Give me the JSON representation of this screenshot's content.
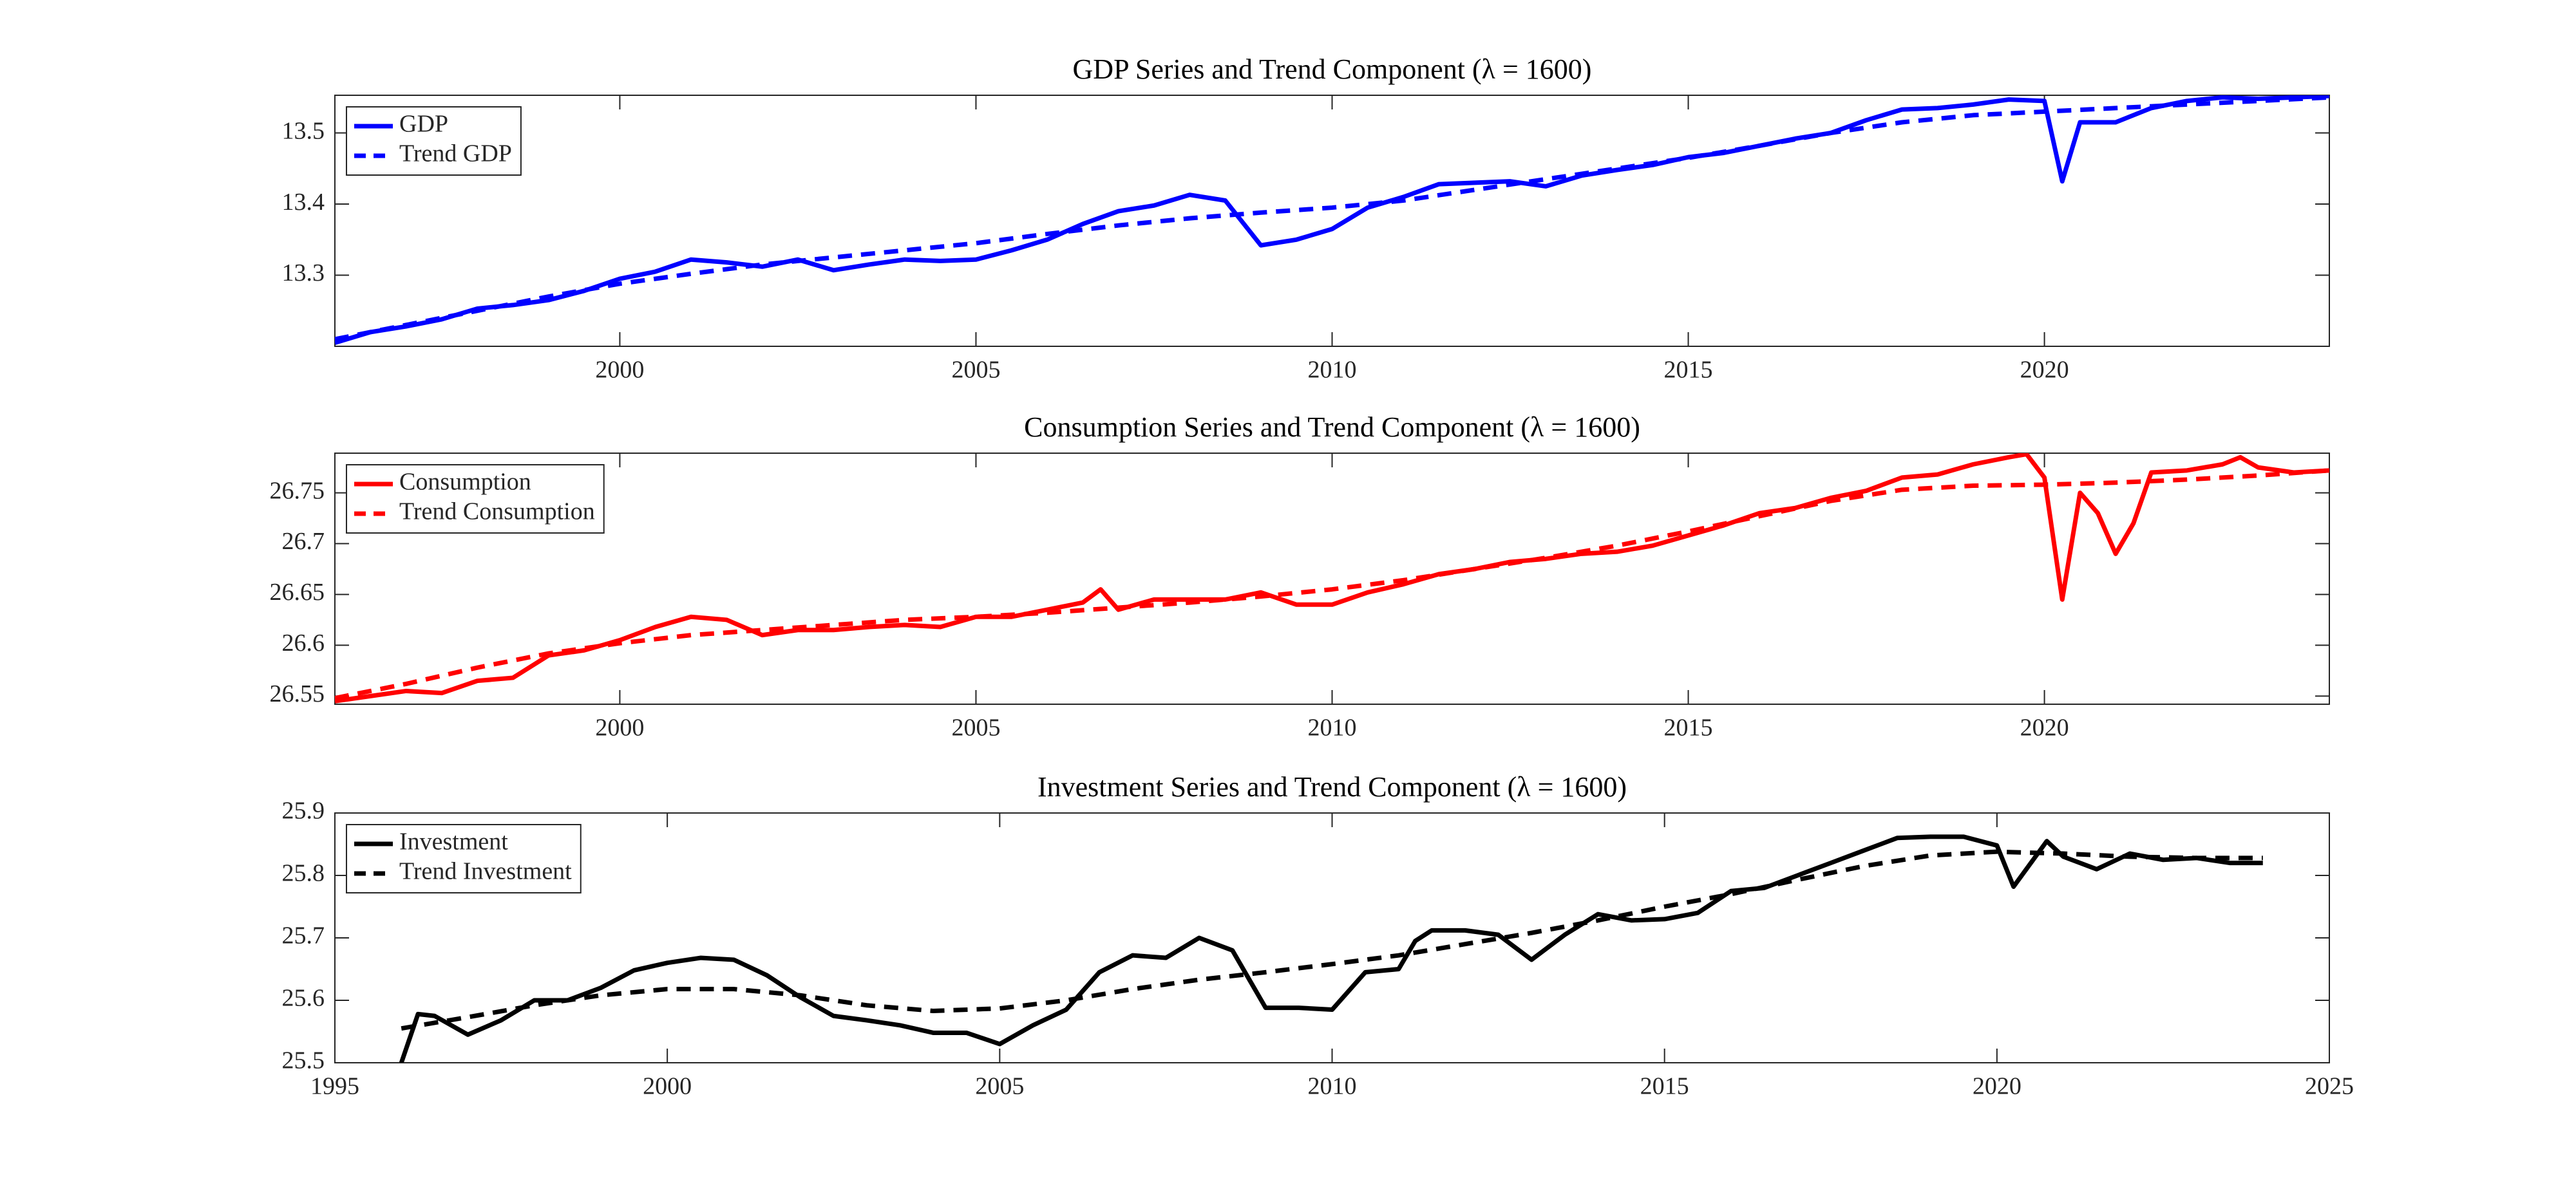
{
  "chart_data": [
    {
      "type": "line",
      "title": "GDP Series and Trend Component (λ = 1600)",
      "legend": "upper left",
      "xlim": [
        1996,
        2024
      ],
      "xticks": [
        2000,
        2005,
        2010,
        2015,
        2020
      ],
      "ylim": [
        13.2,
        13.553
      ],
      "yticks": [
        13.3,
        13.4,
        13.5
      ],
      "series": [
        {
          "name": "GDP",
          "color": "#0000ff",
          "style": "solid",
          "x": [
            1996,
            1996.5,
            1997,
            1997.5,
            1998,
            1998.5,
            1999,
            1999.5,
            2000,
            2000.5,
            2001,
            2001.5,
            2002,
            2002.5,
            2003,
            2003.5,
            2004,
            2004.5,
            2005,
            2005.5,
            2006,
            2006.5,
            2007,
            2007.5,
            2008,
            2008.5,
            2009,
            2009.5,
            2010,
            2010.5,
            2011,
            2011.5,
            2012,
            2012.5,
            2013,
            2013.5,
            2014,
            2014.5,
            2015,
            2015.5,
            2016,
            2016.5,
            2017,
            2017.5,
            2018,
            2018.5,
            2019,
            2019.5,
            2020,
            2020.25,
            2020.5,
            2021,
            2021.5,
            2022,
            2022.5,
            2023,
            2023.5,
            2024
          ],
          "values": [
            13.205,
            13.22,
            13.228,
            13.238,
            13.253,
            13.258,
            13.265,
            13.278,
            13.295,
            13.305,
            13.322,
            13.318,
            13.312,
            13.322,
            13.307,
            13.315,
            13.322,
            13.32,
            13.322,
            13.335,
            13.35,
            13.372,
            13.39,
            13.398,
            13.413,
            13.405,
            13.342,
            13.35,
            13.365,
            13.395,
            13.41,
            13.428,
            13.43,
            13.432,
            13.425,
            13.44,
            13.448,
            13.455,
            13.466,
            13.472,
            13.482,
            13.492,
            13.5,
            13.518,
            13.533,
            13.535,
            13.54,
            13.547,
            13.545,
            13.432,
            13.515,
            13.515,
            13.535,
            13.545,
            13.55,
            13.548,
            13.55,
            13.552
          ]
        },
        {
          "name": "Trend GDP",
          "color": "#0000ff",
          "style": "dashed",
          "x": [
            1996,
            1997,
            1998,
            1999,
            2000,
            2001,
            2002,
            2003,
            2004,
            2005,
            2006,
            2007,
            2008,
            2009,
            2010,
            2011,
            2012,
            2013,
            2014,
            2015,
            2016,
            2017,
            2018,
            2019,
            2020,
            2021,
            2022,
            2023,
            2024
          ],
          "values": [
            13.21,
            13.23,
            13.25,
            13.27,
            13.288,
            13.302,
            13.315,
            13.325,
            13.335,
            13.345,
            13.358,
            13.37,
            13.38,
            13.388,
            13.395,
            13.405,
            13.42,
            13.435,
            13.45,
            13.465,
            13.482,
            13.5,
            13.515,
            13.525,
            13.53,
            13.535,
            13.54,
            13.545,
            13.55
          ]
        }
      ]
    },
    {
      "type": "line",
      "title": "Consumption Series and Trend Component (λ = 1600)",
      "legend": "upper left",
      "xlim": [
        1996,
        2024
      ],
      "xticks": [
        2000,
        2005,
        2010,
        2015,
        2020
      ],
      "ylim": [
        26.542,
        26.789
      ],
      "yticks": [
        26.55,
        26.6,
        26.65,
        26.7,
        26.75
      ],
      "series": [
        {
          "name": "Consumption",
          "color": "#ff0000",
          "style": "solid",
          "x": [
            1996,
            1996.5,
            1997,
            1997.5,
            1998,
            1998.5,
            1999,
            1999.5,
            2000,
            2000.5,
            2001,
            2001.5,
            2002,
            2002.5,
            2003,
            2003.5,
            2004,
            2004.5,
            2005,
            2005.5,
            2006,
            2006.5,
            2006.75,
            2007,
            2007.5,
            2008,
            2008.5,
            2009,
            2009.5,
            2010,
            2010.5,
            2011,
            2011.5,
            2012,
            2012.5,
            2013,
            2013.5,
            2014,
            2014.5,
            2015,
            2015.5,
            2016,
            2016.5,
            2017,
            2017.5,
            2018,
            2018.5,
            2019,
            2019.5,
            2019.75,
            2020,
            2020.25,
            2020.5,
            2020.75,
            2021,
            2021.25,
            2021.5,
            2022,
            2022.5,
            2022.75,
            2023,
            2023.5,
            2024
          ],
          "values": [
            26.545,
            26.55,
            26.555,
            26.553,
            26.565,
            26.568,
            26.59,
            26.595,
            26.605,
            26.618,
            26.628,
            26.625,
            26.61,
            26.615,
            26.615,
            26.618,
            26.62,
            26.618,
            26.628,
            26.628,
            26.635,
            26.642,
            26.655,
            26.635,
            26.645,
            26.645,
            26.645,
            26.652,
            26.64,
            26.64,
            26.652,
            26.66,
            26.67,
            26.675,
            26.682,
            26.685,
            26.69,
            26.692,
            26.698,
            26.708,
            26.718,
            26.73,
            26.735,
            26.745,
            26.752,
            26.765,
            26.768,
            26.778,
            26.785,
            26.788,
            26.765,
            26.645,
            26.75,
            26.73,
            26.69,
            26.72,
            26.77,
            26.772,
            26.778,
            26.785,
            26.775,
            26.77,
            26.772
          ]
        },
        {
          "name": "Trend Consumption",
          "color": "#ff0000",
          "style": "dashed",
          "x": [
            1996,
            1997,
            1998,
            1999,
            2000,
            2001,
            2002,
            2003,
            2004,
            2005,
            2006,
            2007,
            2008,
            2009,
            2010,
            2011,
            2012,
            2013,
            2014,
            2015,
            2016,
            2017,
            2018,
            2019,
            2020,
            2021,
            2022,
            2023,
            2024
          ],
          "values": [
            26.548,
            26.562,
            26.578,
            26.592,
            26.602,
            26.61,
            26.615,
            26.62,
            26.625,
            26.628,
            26.632,
            26.637,
            26.642,
            26.648,
            26.655,
            26.664,
            26.675,
            26.686,
            26.698,
            26.712,
            26.727,
            26.742,
            26.753,
            26.757,
            26.758,
            26.76,
            26.763,
            26.767,
            26.772
          ]
        }
      ]
    },
    {
      "type": "line",
      "title": "Investment Series and Trend Component (λ = 1600)",
      "legend": "upper left",
      "xlim": [
        1995,
        2025
      ],
      "xticks": [
        1995,
        2000,
        2005,
        2010,
        2015,
        2020,
        2025
      ],
      "ylim": [
        25.5,
        25.9
      ],
      "yticks": [
        25.5,
        25.6,
        25.7,
        25.8,
        25.9
      ],
      "series": [
        {
          "name": "Investment",
          "color": "#000000",
          "style": "solid",
          "x": [
            1996,
            1996.25,
            1996.5,
            1997,
            1997.5,
            1998,
            1998.5,
            1999,
            1999.5,
            2000,
            2000.5,
            2001,
            2001.5,
            2002,
            2002.5,
            2003,
            2003.5,
            2004,
            2004.5,
            2005,
            2005.5,
            2006,
            2006.5,
            2007,
            2007.5,
            2008,
            2008.5,
            2009,
            2009.5,
            2010,
            2010.5,
            2011,
            2011.25,
            2011.5,
            2012,
            2012.5,
            2013,
            2013.5,
            2014,
            2014.5,
            2015,
            2015.5,
            2016,
            2016.5,
            2017,
            2017.5,
            2018,
            2018.5,
            2019,
            2019.5,
            2020,
            2020.25,
            2020.75,
            2021,
            2021.5,
            2022,
            2022.5,
            2023,
            2023.5,
            2024
          ],
          "values": [
            25.5,
            25.578,
            25.575,
            25.545,
            25.568,
            25.6,
            25.6,
            25.62,
            25.648,
            25.66,
            25.668,
            25.665,
            25.64,
            25.605,
            25.575,
            25.568,
            25.56,
            25.548,
            25.548,
            25.53,
            25.56,
            25.585,
            25.645,
            25.672,
            25.668,
            25.7,
            25.68,
            25.588,
            25.588,
            25.585,
            25.645,
            25.65,
            25.695,
            25.712,
            25.712,
            25.705,
            25.665,
            25.705,
            25.738,
            25.728,
            25.73,
            25.74,
            25.775,
            25.78,
            25.8,
            25.82,
            25.84,
            25.86,
            25.862,
            25.862,
            25.848,
            25.782,
            25.855,
            25.83,
            25.81,
            25.835,
            25.825,
            25.828,
            25.82,
            25.82
          ]
        },
        {
          "name": "Trend Investment",
          "color": "#000000",
          "style": "dashed",
          "x": [
            1996,
            1997,
            1998,
            1999,
            2000,
            2001,
            2002,
            2003,
            2004,
            2005,
            2006,
            2007,
            2008,
            2009,
            2010,
            2011,
            2012,
            2013,
            2014,
            2015,
            2016,
            2017,
            2018,
            2019,
            2020,
            2021,
            2022,
            2023,
            2024
          ],
          "values": [
            25.555,
            25.573,
            25.592,
            25.608,
            25.618,
            25.618,
            25.608,
            25.592,
            25.583,
            25.587,
            25.6,
            25.618,
            25.633,
            25.645,
            25.658,
            25.672,
            25.69,
            25.708,
            25.728,
            25.75,
            25.77,
            25.793,
            25.815,
            25.832,
            25.838,
            25.835,
            25.83,
            25.828,
            25.828
          ]
        }
      ]
    }
  ]
}
